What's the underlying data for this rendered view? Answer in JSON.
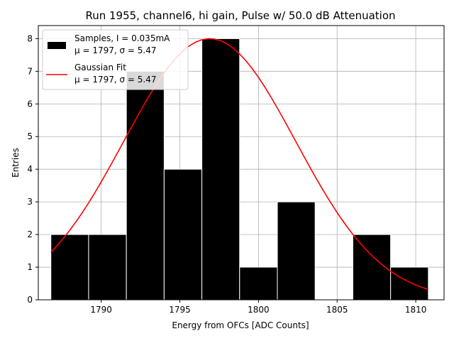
{
  "chart_data": {
    "type": "bar",
    "title": "Run 1955, channel6, hi gain, Pulse w/ 50.0 dB Attenuation",
    "xlabel": "Energy from OFCs [ADC Counts]",
    "ylabel": "Entries",
    "xlim": [
      1786.0,
      1811.8
    ],
    "ylim": [
      0,
      8.4
    ],
    "grid": true,
    "legend_placement": "top-left",
    "xticks": [
      1790,
      1795,
      1800,
      1805,
      1810
    ],
    "yticks": [
      0,
      1,
      2,
      3,
      4,
      5,
      6,
      7,
      8
    ],
    "histogram": {
      "name": "Samples, I = 0.035mA",
      "stats": "μ = 1797, σ = 5.47",
      "color": "#000000",
      "bin_edges": [
        1786.8,
        1789.2,
        1791.6,
        1794.0,
        1796.4,
        1798.8,
        1801.2,
        1803.6,
        1806.0,
        1808.4,
        1810.8
      ],
      "counts": [
        2,
        2,
        7,
        4,
        8,
        1,
        3,
        0,
        2,
        1
      ]
    },
    "fit": {
      "name": "Gaussian Fit",
      "stats": "μ = 1797, σ = 5.47",
      "color": "#ff0000",
      "mu": 1796.9,
      "sigma": 5.47,
      "amplitude": 8.0,
      "x_range": [
        1786.8,
        1810.8
      ]
    }
  }
}
